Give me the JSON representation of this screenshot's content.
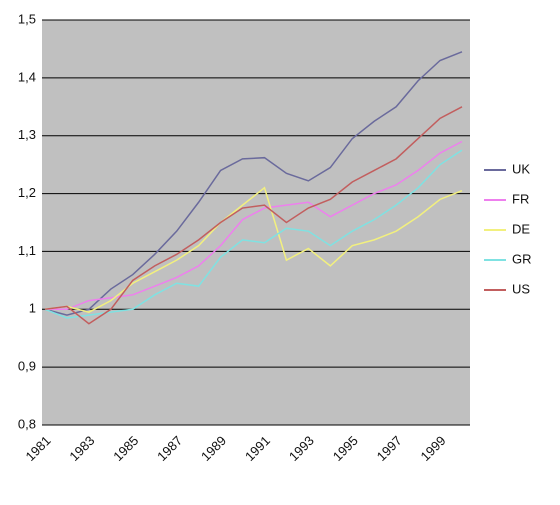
{
  "chart_data": {
    "type": "line",
    "categories": [
      "1981",
      null,
      "1983",
      null,
      "1985",
      null,
      "1987",
      null,
      "1989",
      null,
      "1991",
      null,
      "1993",
      null,
      "1995",
      null,
      "1997",
      null,
      "1999",
      null
    ],
    "series": [
      {
        "name": "UK",
        "color": "#6a6a9c",
        "values": [
          1.0,
          0.99,
          1.0,
          1.035,
          1.06,
          1.095,
          1.135,
          1.185,
          1.24,
          1.26,
          1.262,
          1.235,
          1.222,
          1.245,
          1.295,
          1.325,
          1.35,
          1.395,
          1.43,
          1.445
        ]
      },
      {
        "name": "FR",
        "color": "#ee7fee",
        "values": [
          1.0,
          1.0,
          1.015,
          1.02,
          1.025,
          1.04,
          1.055,
          1.075,
          1.11,
          1.155,
          1.175,
          1.18,
          1.185,
          1.16,
          1.18,
          1.2,
          1.215,
          1.24,
          1.27,
          1.29
        ]
      },
      {
        "name": "DE",
        "color": "#f2f07e",
        "values": [
          1.0,
          1.005,
          0.995,
          1.015,
          1.045,
          1.065,
          1.085,
          1.11,
          1.15,
          1.18,
          1.21,
          1.085,
          1.105,
          1.075,
          1.11,
          1.12,
          1.135,
          1.16,
          1.19,
          1.205
        ]
      },
      {
        "name": "GR",
        "color": "#7fe2e2",
        "values": [
          1.0,
          0.985,
          0.99,
          0.995,
          1.0,
          1.025,
          1.045,
          1.04,
          1.09,
          1.12,
          1.115,
          1.14,
          1.135,
          1.11,
          1.135,
          1.155,
          1.18,
          1.21,
          1.25,
          1.275
        ]
      },
      {
        "name": "US",
        "color": "#c25e5e",
        "values": [
          1.0,
          1.005,
          0.975,
          1.0,
          1.05,
          1.075,
          1.095,
          1.12,
          1.15,
          1.175,
          1.18,
          1.15,
          1.175,
          1.19,
          1.22,
          1.24,
          1.26,
          1.295,
          1.33,
          1.35
        ]
      }
    ],
    "ylim": [
      0.8,
      1.5
    ],
    "yticks": [
      {
        "value": 0.8,
        "label": "0,8"
      },
      {
        "value": 0.9,
        "label": "0,9"
      },
      1,
      {
        "value": 1.1,
        "label": "1,1"
      },
      {
        "value": 1.2,
        "label": "1,2"
      },
      {
        "value": 1.3,
        "label": "1,3"
      },
      {
        "value": 1.4,
        "label": "1,4"
      },
      {
        "value": 1.5,
        "label": "1,5"
      }
    ],
    "grid": true,
    "legend": "right"
  }
}
